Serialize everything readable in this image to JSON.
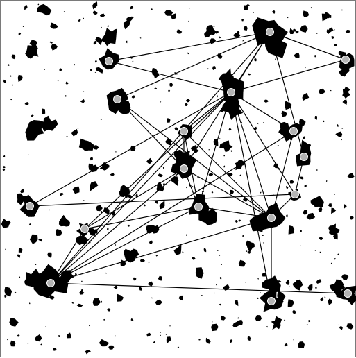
{
  "figure": {
    "background": "#ffffff",
    "blob_color": "#000000",
    "edge_color": "#000000",
    "node_fill": "#b3b3b3",
    "node_stroke": "#ffffff",
    "border_color": "#7a7a7a"
  },
  "nodes": [
    {
      "id": "n1"
    },
    {
      "id": "n2"
    },
    {
      "id": "n3"
    },
    {
      "id": "n4"
    },
    {
      "id": "n5"
    },
    {
      "id": "n6"
    },
    {
      "id": "n7"
    },
    {
      "id": "n8"
    },
    {
      "id": "n9"
    },
    {
      "id": "n10"
    },
    {
      "id": "n11"
    },
    {
      "id": "n12"
    },
    {
      "id": "n13"
    },
    {
      "id": "n14"
    },
    {
      "id": "n15"
    },
    {
      "id": "n16"
    },
    {
      "id": "n17"
    }
  ],
  "edges": [
    [
      "n1",
      "n2"
    ],
    [
      "n1",
      "n3"
    ],
    [
      "n1",
      "n4"
    ],
    [
      "n1",
      "n5"
    ],
    [
      "n1",
      "n6"
    ],
    [
      "n1",
      "n12"
    ],
    [
      "n1",
      "n13"
    ],
    [
      "n2",
      "n3"
    ],
    [
      "n3",
      "n4"
    ],
    [
      "n3",
      "n7"
    ],
    [
      "n3",
      "n8"
    ],
    [
      "n3",
      "n9"
    ],
    [
      "n3",
      "n10"
    ],
    [
      "n3",
      "n11"
    ],
    [
      "n3",
      "n12"
    ],
    [
      "n3",
      "n14"
    ],
    [
      "n3",
      "n15"
    ],
    [
      "n3",
      "n16"
    ],
    [
      "n5",
      "n6"
    ],
    [
      "n5",
      "n9"
    ],
    [
      "n6",
      "n7"
    ],
    [
      "n6",
      "n8"
    ],
    [
      "n6",
      "n9"
    ],
    [
      "n6",
      "n10"
    ],
    [
      "n6",
      "n12"
    ],
    [
      "n7",
      "n8"
    ],
    [
      "n7",
      "n9"
    ],
    [
      "n8",
      "n9"
    ],
    [
      "n8",
      "n10"
    ],
    [
      "n8",
      "n12"
    ],
    [
      "n9",
      "n11"
    ],
    [
      "n9",
      "n12"
    ],
    [
      "n9",
      "n14"
    ],
    [
      "n9",
      "n16"
    ],
    [
      "n10",
      "n12"
    ],
    [
      "n11",
      "n12"
    ],
    [
      "n12",
      "n17"
    ],
    [
      "n13",
      "n14"
    ],
    [
      "n14",
      "n15"
    ]
  ]
}
